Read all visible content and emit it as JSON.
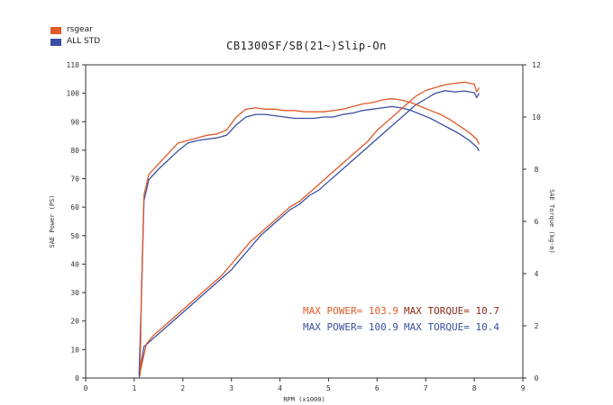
{
  "chart_data": {
    "type": "line",
    "title": "CB1300SF/SB(21~)Slip-On",
    "xlabel": "RPM (x1000)",
    "ylabel_left": "SAE Power (PS)",
    "ylabel_right": "SAE Torque (kg-m)",
    "xlim": [
      0,
      9
    ],
    "ylim_left": [
      0,
      110
    ],
    "ylim_right": [
      0,
      12
    ],
    "x_ticks": [
      "0",
      "1",
      "2",
      "3",
      "4",
      "5",
      "6",
      "7",
      "8",
      "9"
    ],
    "y_left_ticks": [
      "0",
      "10",
      "20",
      "30",
      "40",
      "50",
      "60",
      "70",
      "80",
      "90",
      "100",
      "110"
    ],
    "y_right_ticks": [
      "0",
      "2",
      "4",
      "6",
      "8",
      "10",
      "12"
    ],
    "legend_position": "top-left",
    "series": [
      {
        "name": "rsgear",
        "color": "#e05a2a",
        "power": {
          "rpm": [
            1.12,
            1.25,
            1.4,
            1.6,
            1.8,
            2.0,
            2.2,
            2.4,
            2.6,
            2.8,
            3.0,
            3.2,
            3.4,
            3.6,
            3.8,
            4.0,
            4.2,
            4.4,
            4.6,
            4.8,
            5.0,
            5.2,
            5.4,
            5.6,
            5.8,
            6.0,
            6.2,
            6.4,
            6.6,
            6.8,
            7.0,
            7.2,
            7.4,
            7.6,
            7.8,
            8.0,
            8.05,
            8.1
          ],
          "ps": [
            2,
            12,
            15,
            18,
            21,
            24,
            27,
            30,
            33,
            36,
            40,
            44,
            48,
            51,
            54,
            57,
            60,
            62,
            65,
            68,
            71,
            74,
            77,
            80,
            83,
            87,
            90,
            93,
            96,
            99,
            101,
            102,
            103,
            103.5,
            103.9,
            103.2,
            100.5,
            102
          ]
        },
        "torque": {
          "rpm": [
            1.12,
            1.15,
            1.2,
            1.3,
            1.5,
            1.7,
            1.9,
            2.1,
            2.3,
            2.5,
            2.7,
            2.9,
            3.1,
            3.3,
            3.5,
            3.7,
            3.9,
            4.1,
            4.3,
            4.5,
            4.7,
            4.9,
            5.1,
            5.3,
            5.5,
            5.7,
            5.9,
            6.1,
            6.3,
            6.5,
            6.7,
            6.9,
            7.1,
            7.3,
            7.5,
            7.7,
            7.9,
            8.05,
            8.1
          ],
          "kgm": [
            0.1,
            3.5,
            7.0,
            7.8,
            8.2,
            8.6,
            9.0,
            9.1,
            9.2,
            9.3,
            9.35,
            9.5,
            10.0,
            10.3,
            10.35,
            10.3,
            10.3,
            10.25,
            10.25,
            10.2,
            10.2,
            10.2,
            10.25,
            10.3,
            10.4,
            10.5,
            10.55,
            10.65,
            10.7,
            10.65,
            10.55,
            10.4,
            10.25,
            10.1,
            9.9,
            9.65,
            9.4,
            9.15,
            8.95
          ]
        }
      },
      {
        "name": "ALL STD",
        "color": "#3a4fa0",
        "power": {
          "rpm": [
            1.1,
            1.2,
            1.4,
            1.6,
            1.8,
            2.0,
            2.2,
            2.4,
            2.6,
            2.8,
            3.0,
            3.2,
            3.4,
            3.6,
            3.8,
            4.0,
            4.2,
            4.4,
            4.6,
            4.8,
            5.0,
            5.2,
            5.4,
            5.6,
            5.8,
            6.0,
            6.2,
            6.4,
            6.6,
            6.8,
            7.0,
            7.2,
            7.4,
            7.6,
            7.8,
            8.0,
            8.05,
            8.1
          ],
          "ps": [
            0,
            11,
            14,
            17,
            20,
            23,
            26,
            29,
            32,
            35,
            38,
            42,
            46,
            50,
            53,
            56,
            59,
            61,
            64,
            66,
            69,
            72,
            75,
            78,
            81,
            84,
            87,
            90,
            93,
            96,
            98,
            100,
            100.9,
            100.5,
            100.8,
            100.2,
            98.5,
            100
          ]
        },
        "torque": {
          "rpm": [
            1.1,
            1.15,
            1.2,
            1.3,
            1.5,
            1.7,
            1.9,
            2.1,
            2.3,
            2.5,
            2.7,
            2.9,
            3.1,
            3.3,
            3.5,
            3.7,
            3.9,
            4.1,
            4.3,
            4.5,
            4.7,
            4.9,
            5.1,
            5.3,
            5.5,
            5.7,
            5.9,
            6.1,
            6.3,
            6.5,
            6.7,
            6.9,
            7.1,
            7.3,
            7.5,
            7.7,
            7.9,
            8.05,
            8.1
          ],
          "kgm": [
            0.1,
            3.2,
            6.8,
            7.6,
            8.0,
            8.35,
            8.7,
            9.0,
            9.1,
            9.15,
            9.2,
            9.3,
            9.7,
            10.0,
            10.1,
            10.1,
            10.05,
            10.0,
            9.95,
            9.95,
            9.95,
            10.0,
            10.0,
            10.1,
            10.15,
            10.25,
            10.3,
            10.35,
            10.4,
            10.35,
            10.25,
            10.1,
            9.95,
            9.75,
            9.55,
            9.35,
            9.1,
            8.85,
            8.7
          ]
        }
      }
    ],
    "annotations": [
      {
        "text": "MAX POWER= 103.9",
        "color": "#e05a2a"
      },
      {
        "text": "MAX TORQUE= 10.7",
        "color": "#8a2b1a"
      },
      {
        "text": "MAX POWER= 100.9",
        "color": "#3a4fa0"
      },
      {
        "text": "MAX TORQUE= 10.4",
        "color": "#3a4fa0"
      }
    ]
  },
  "legend": {
    "items": [
      {
        "label": "rsgear",
        "color": "#e05a2a"
      },
      {
        "label": "ALL STD",
        "color": "#3a4fa0"
      }
    ]
  }
}
